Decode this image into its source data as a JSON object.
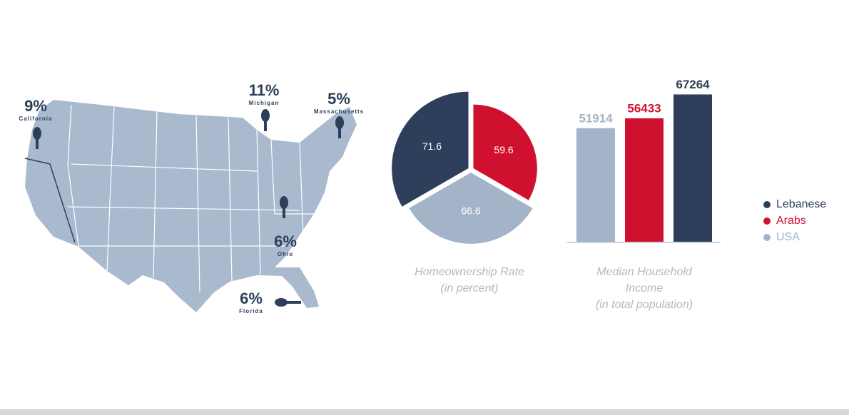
{
  "legend": {
    "series": [
      {
        "name": "Lebanese",
        "color": "#2e3f5c"
      },
      {
        "name": "Arabs",
        "color": "#d0102f"
      },
      {
        "name": "USA",
        "color": "#a3b4c8"
      }
    ]
  },
  "chart_data": [
    {
      "type": "map",
      "color": "#a9b9ce",
      "pin_color": "#2e3f5c",
      "regions": [
        {
          "name": "California",
          "value": 9,
          "label": "9%"
        },
        {
          "name": "Michigan",
          "value": 11,
          "label": "11%"
        },
        {
          "name": "Massachusetts",
          "value": 5,
          "label": "5%"
        },
        {
          "name": "Ohio",
          "value": 6,
          "label": "6%"
        },
        {
          "name": "Florida",
          "value": 6,
          "label": "6%"
        }
      ]
    },
    {
      "type": "polar",
      "title": "Homeownership Rate",
      "subtitle": "(in percent)",
      "values": [
        71.6,
        59.6,
        66.6
      ],
      "rlim": [
        0,
        80
      ]
    },
    {
      "type": "bar",
      "title": "Median Household Income",
      "subtitle": "(in total population)",
      "values": [
        67264,
        56433,
        51914
      ],
      "ylim": [
        0,
        70000
      ]
    }
  ]
}
